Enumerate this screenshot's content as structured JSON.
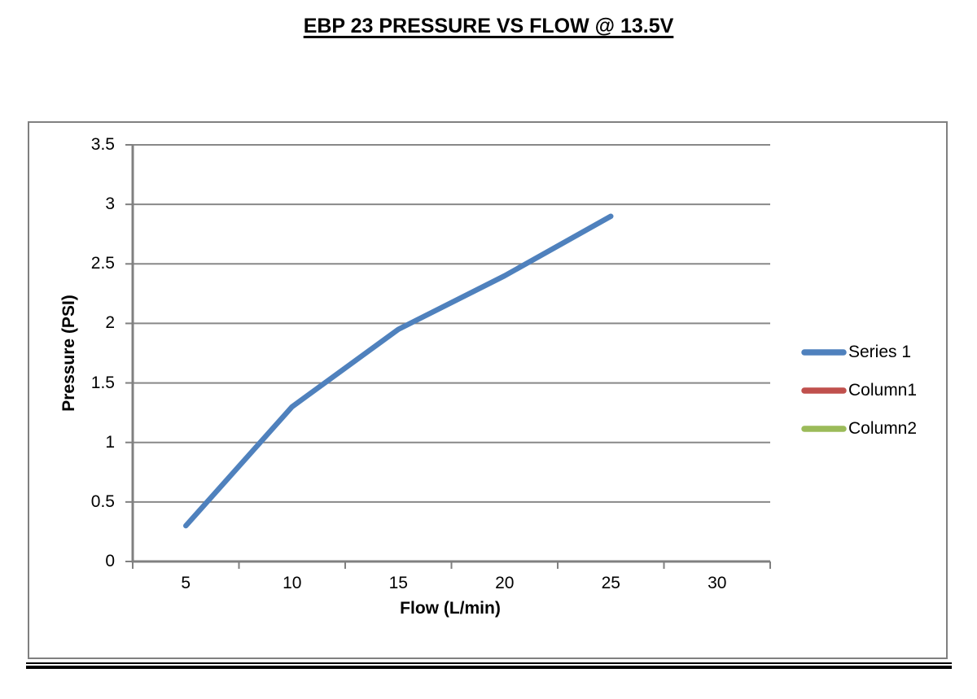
{
  "title": "EBP 23 PRESSURE VS FLOW @ 13.5V",
  "chart_data": {
    "type": "line",
    "title": "EBP 23 PRESSURE VS FLOW @ 13.5V",
    "xlabel": "Flow (L/min)",
    "ylabel": "Pressure (PSI)",
    "categories": [
      5,
      10,
      15,
      20,
      25,
      30
    ],
    "series": [
      {
        "name": "Series 1",
        "color": "#4F81BD",
        "values": [
          0.3,
          1.3,
          1.95,
          2.4,
          2.9,
          null
        ]
      },
      {
        "name": "Column1",
        "color": "#C0504D",
        "values": []
      },
      {
        "name": "Column2",
        "color": "#9BBB59",
        "values": []
      }
    ],
    "ylim": [
      0,
      3.5
    ],
    "yticks": [
      0,
      0.5,
      1,
      1.5,
      2,
      2.5,
      3,
      3.5
    ],
    "xticks": [
      5,
      10,
      15,
      20,
      25,
      30
    ],
    "grid": "horizontal",
    "legend_position": "right-middle",
    "colors": {
      "gridline": "#888888",
      "axis": "#808080",
      "frame_border": "#808080",
      "text": "#000000"
    }
  }
}
